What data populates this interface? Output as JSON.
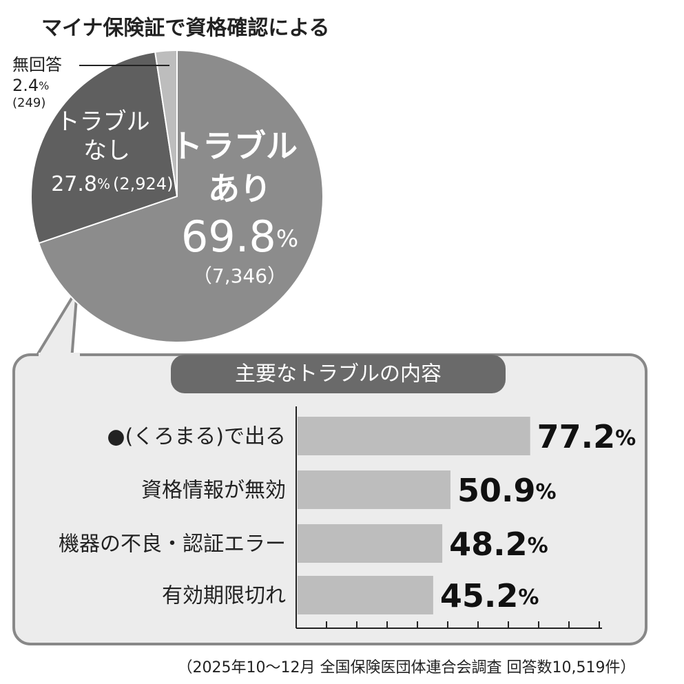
{
  "title": "マイナ保険証で資格確認による",
  "source": "（2025年10〜12月 全国保険医団体連合会調査 回答数10,519件）",
  "chart_data": [
    {
      "type": "pie",
      "categories": [
        "トラブル\nあり",
        "トラブル\nなし",
        "無回答"
      ],
      "values": [
        69.8,
        27.8,
        2.4
      ],
      "value_labels": [
        "69.8%",
        "27.8%",
        "2.4%"
      ],
      "counts": [
        7346,
        2924,
        249
      ],
      "count_labels": [
        "（7,346）",
        "(2,924)",
        "(249)"
      ],
      "colors": [
        "#8c8c8c",
        "#5f5f5f",
        "#bdbdbd"
      ]
    },
    {
      "type": "bar",
      "title": "主要なトラブルの内容",
      "categories": [
        "●(くろまる)で出る",
        "資格情報が無効",
        "機器の不良・認証エラー",
        "有効期限切れ"
      ],
      "values": [
        77.2,
        50.9,
        48.2,
        45.2
      ],
      "value_labels": [
        "77.2%",
        "50.9%",
        "48.2%",
        "45.2%"
      ],
      "color": "#bdbdbd",
      "xlim": [
        0,
        100
      ],
      "xticks": [
        0,
        10,
        20,
        30,
        40,
        50,
        60,
        70,
        80,
        90,
        100
      ]
    }
  ]
}
